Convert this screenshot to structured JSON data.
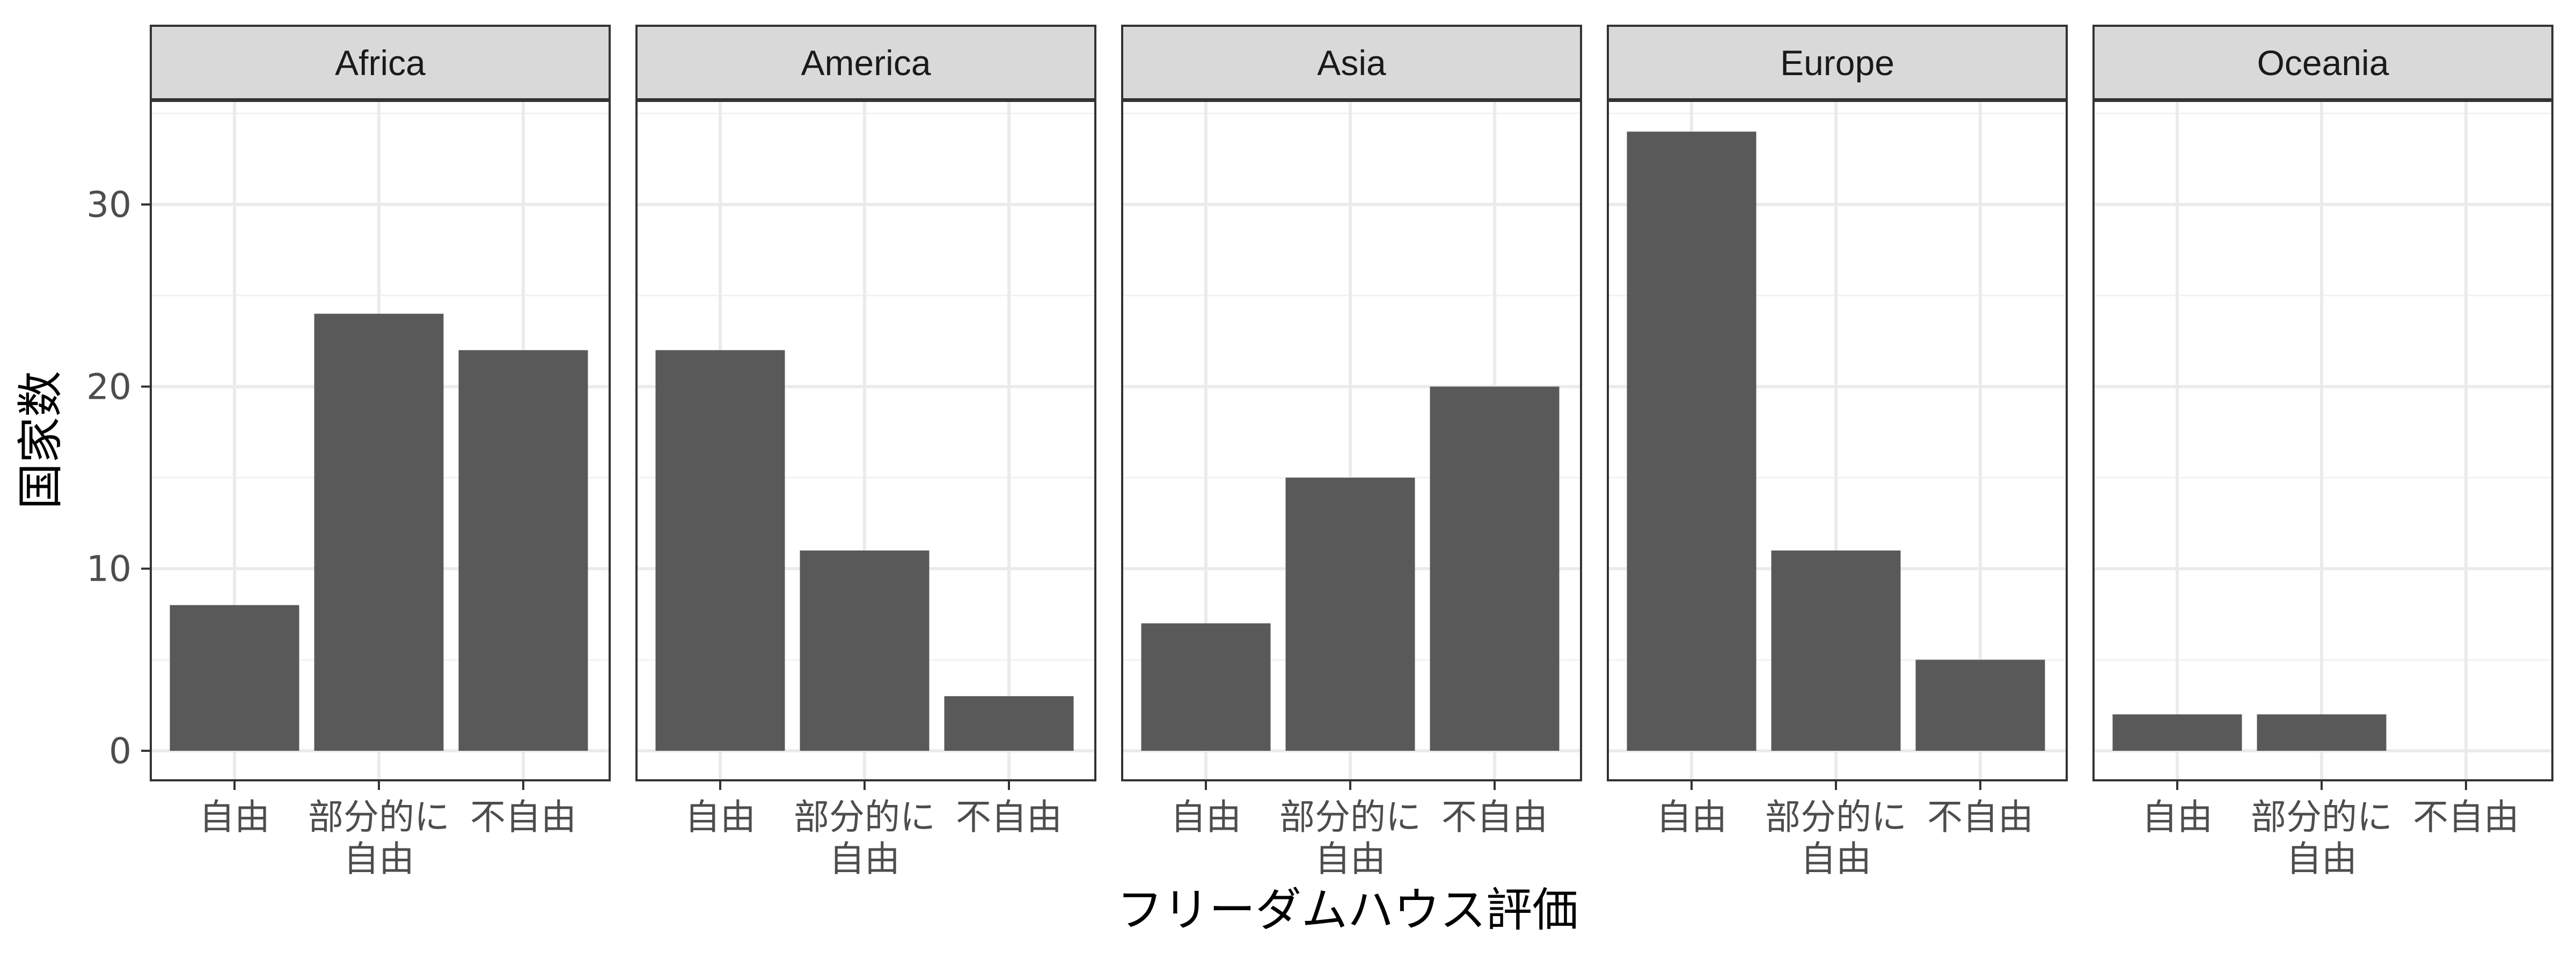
{
  "chart_data": {
    "type": "bar",
    "xlabel": "フリーダムハウス評価",
    "ylabel": "国家数",
    "ylim": [
      0,
      37.5
    ],
    "yticks": [
      0,
      10,
      20,
      30
    ],
    "categories": [
      [
        "自由"
      ],
      [
        "部分的に",
        "自由"
      ],
      [
        "不自由"
      ]
    ],
    "bar_color": "#595959",
    "strip_color": "#d9d9d9",
    "grid": true,
    "facets": [
      {
        "name": "Africa",
        "values": [
          8,
          24,
          22
        ]
      },
      {
        "name": "America",
        "values": [
          22,
          11,
          3
        ]
      },
      {
        "name": "Asia",
        "values": [
          7,
          15,
          20
        ]
      },
      {
        "name": "Europe",
        "values": [
          34,
          11,
          5
        ]
      },
      {
        "name": "Oceania",
        "values": [
          2,
          2,
          0
        ]
      }
    ]
  }
}
